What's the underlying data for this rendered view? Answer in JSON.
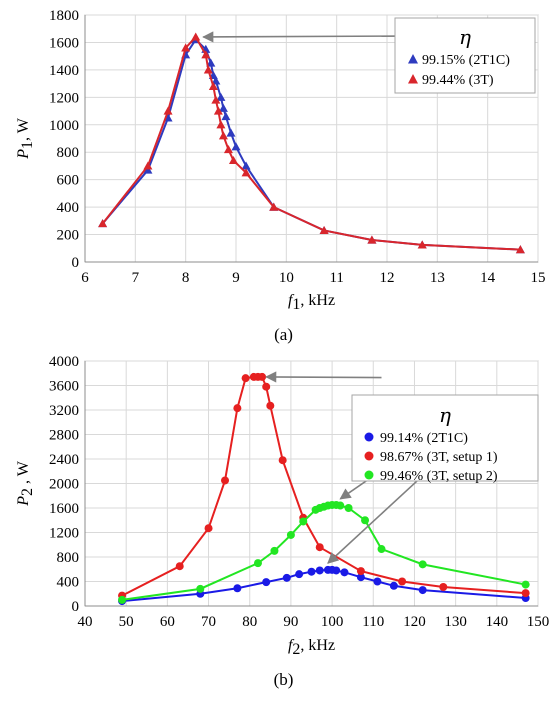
{
  "chart_data": [
    {
      "type": "line",
      "panel_label": "(a)",
      "panel_letter": "a",
      "xlabel_var": "f",
      "xlabel_sub": "1",
      "xlabel_unit": ", kHz",
      "ylabel_var": "P",
      "ylabel_sub": "1",
      "ylabel_unit": ", W",
      "xlim": [
        6,
        15
      ],
      "ylim": [
        0,
        1800
      ],
      "xticks": [
        6,
        7,
        8,
        9,
        10,
        11,
        12,
        13,
        14,
        15
      ],
      "yticks": [
        0,
        200,
        400,
        600,
        800,
        1000,
        1200,
        1400,
        1600,
        1800
      ],
      "grid": true,
      "legend_title": "η",
      "legend_position": "top-right",
      "series": [
        {
          "name": "99.15% (2T1C)",
          "color": "#2e3bbf",
          "marker": "triangle",
          "x": [
            6.35,
            7.25,
            7.65,
            8.0,
            8.2,
            8.4,
            8.5,
            8.55,
            8.6,
            8.7,
            8.75,
            8.8,
            8.9,
            9.0,
            9.2,
            9.75,
            10.75,
            11.7,
            12.7,
            14.65
          ],
          "y": [
            280,
            670,
            1050,
            1510,
            1620,
            1550,
            1450,
            1360,
            1320,
            1200,
            1120,
            1060,
            940,
            840,
            700,
            400,
            230,
            160,
            125,
            90
          ]
        },
        {
          "name": "99.44% (3T)",
          "color": "#d9262c",
          "marker": "triangle",
          "x": [
            6.35,
            7.25,
            7.65,
            8.0,
            8.2,
            8.4,
            8.45,
            8.55,
            8.6,
            8.65,
            8.7,
            8.75,
            8.85,
            8.95,
            9.2,
            9.75,
            10.75,
            11.7,
            12.7,
            14.65
          ],
          "y": [
            280,
            700,
            1100,
            1560,
            1640,
            1510,
            1400,
            1280,
            1180,
            1100,
            1000,
            920,
            820,
            740,
            650,
            400,
            230,
            160,
            125,
            90
          ]
        }
      ],
      "annotation_arrows": [
        {
          "from": [
            14.3,
            1650
          ],
          "to": [
            8.35,
            1640
          ]
        }
      ]
    },
    {
      "type": "line",
      "panel_label": "(b)",
      "panel_letter": "b",
      "xlabel_var": "f",
      "xlabel_sub": "2",
      "xlabel_unit": ", kHz",
      "ylabel_var": "P",
      "ylabel_sub": "2",
      "ylabel_unit": " , W",
      "xlim": [
        40,
        150
      ],
      "ylim": [
        0,
        4000
      ],
      "xticks": [
        40,
        50,
        60,
        70,
        80,
        90,
        100,
        110,
        120,
        130,
        140,
        150
      ],
      "yticks": [
        0,
        400,
        800,
        1200,
        1600,
        2000,
        2400,
        2800,
        3200,
        3600,
        4000
      ],
      "grid": true,
      "legend_title": "η",
      "legend_position": "top-right",
      "series": [
        {
          "name": "99.14% (2T1C)",
          "color": "#1a1ae6",
          "marker": "circle",
          "x": [
            49,
            68,
            77,
            84,
            89,
            92,
            95,
            97,
            99,
            100,
            101,
            103,
            107,
            111,
            115,
            122,
            147
          ],
          "y": [
            80,
            200,
            290,
            390,
            460,
            520,
            560,
            580,
            590,
            590,
            580,
            550,
            470,
            400,
            330,
            260,
            130
          ]
        },
        {
          "name": "98.67% (3T, setup 1)",
          "color": "#e62020",
          "marker": "circle",
          "x": [
            49,
            63,
            70,
            74,
            77,
            79,
            81,
            82,
            83,
            84,
            85,
            88,
            93,
            97,
            107,
            117,
            127,
            147
          ],
          "y": [
            170,
            650,
            1270,
            2050,
            3230,
            3720,
            3740,
            3740,
            3740,
            3580,
            3270,
            2380,
            1440,
            960,
            570,
            400,
            310,
            210
          ]
        },
        {
          "name": "99.46% (3T, setup 2)",
          "color": "#22e622",
          "marker": "circle",
          "x": [
            49,
            68,
            82,
            86,
            90,
            93,
            96,
            97,
            98,
            99,
            100,
            101,
            102,
            104,
            108,
            112,
            122,
            147
          ],
          "y": [
            100,
            280,
            700,
            900,
            1160,
            1380,
            1570,
            1600,
            1620,
            1640,
            1650,
            1650,
            1640,
            1600,
            1400,
            930,
            680,
            350
          ]
        }
      ],
      "annotation_arrows": [
        {
          "from": [
            112,
            3730
          ],
          "to": [
            84,
            3740
          ]
        },
        {
          "from": [
            116,
            2400
          ],
          "to": [
            102,
            1750
          ]
        },
        {
          "from": [
            124,
            2250
          ],
          "to": [
            99,
            700
          ]
        }
      ]
    }
  ]
}
